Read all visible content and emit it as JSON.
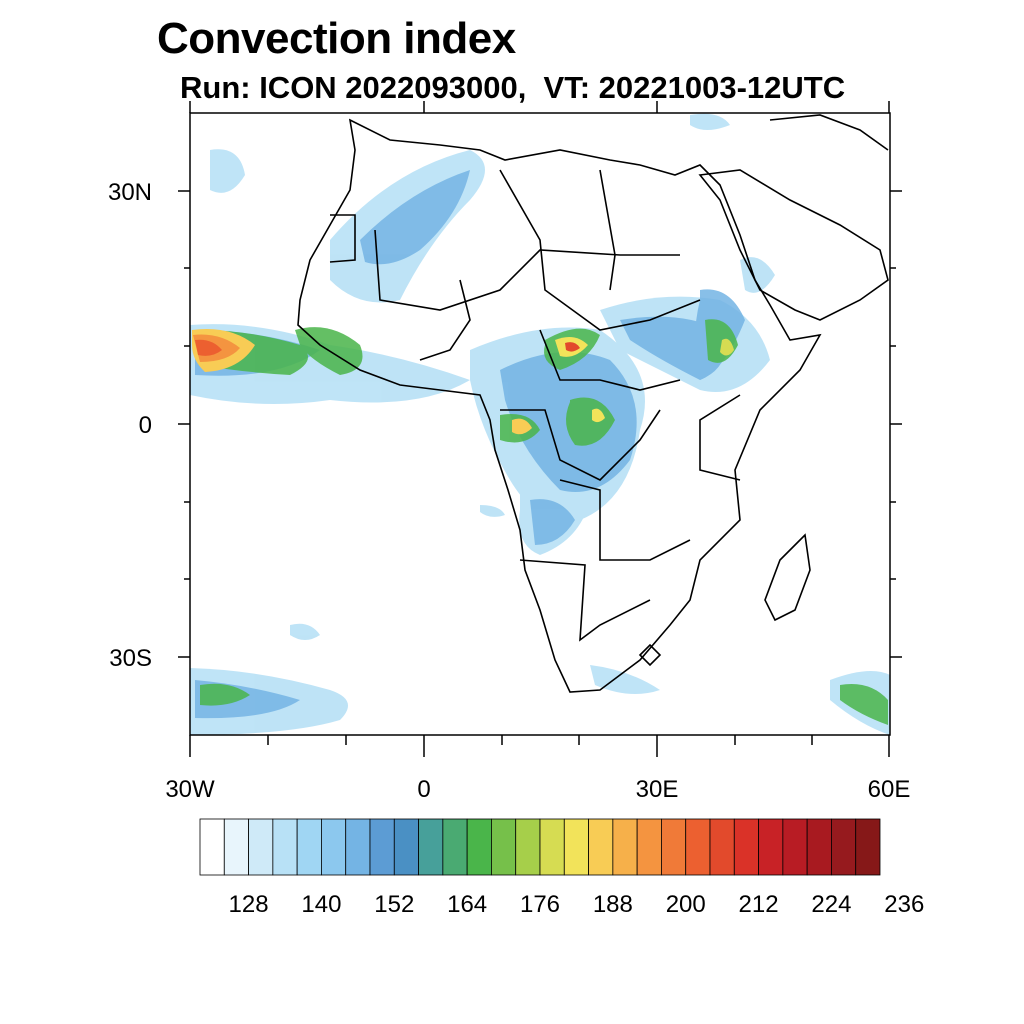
{
  "title": "Convection index",
  "subtitle": "Run: ICON 2022093000,  VT: 20221003-12UTC",
  "map": {
    "region": "Africa",
    "lon_range": [
      -30,
      60
    ],
    "lat_range": [
      -40,
      40
    ],
    "lat_labels": [
      "30N",
      "0",
      "30S"
    ],
    "lon_labels": [
      "30W",
      "0",
      "30E",
      "60E"
    ]
  },
  "colorbar": {
    "labels": [
      "128",
      "140",
      "152",
      "164",
      "176",
      "188",
      "200",
      "212",
      "224",
      "236"
    ],
    "colors": [
      "#ffffff",
      "#e8f5fc",
      "#cfeaf8",
      "#b8e1f6",
      "#a0d6f3",
      "#8cc8ee",
      "#74b4e4",
      "#5c9cd4",
      "#4a90c4",
      "#47a09a",
      "#4aaa72",
      "#4ab54a",
      "#76c04a",
      "#a6cf4a",
      "#d6dc52",
      "#f2e35a",
      "#f8cc55",
      "#f6b04a",
      "#f49440",
      "#f07a38",
      "#ec6030",
      "#e24a2c",
      "#da3228",
      "#c82226",
      "#b81c24",
      "#a81a20",
      "#961a1e",
      "#861818"
    ]
  }
}
